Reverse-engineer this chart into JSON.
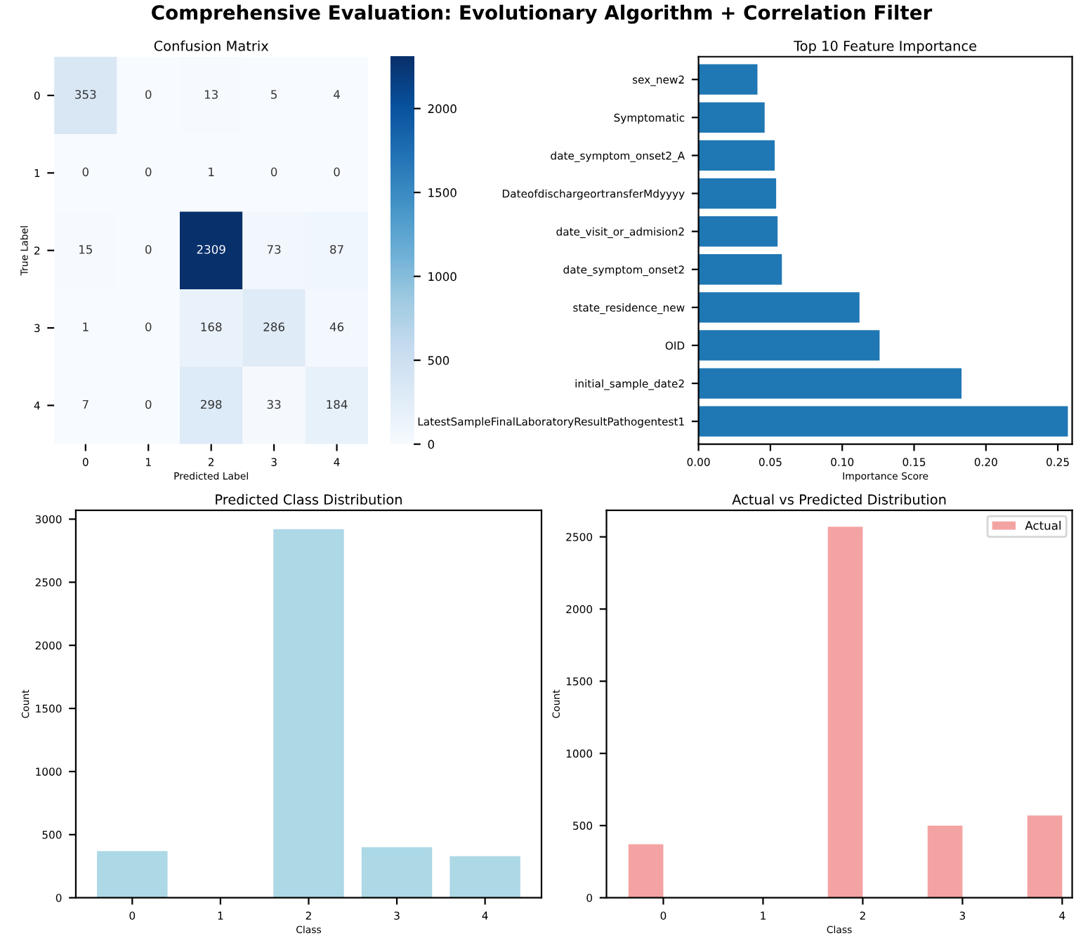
{
  "chart_data": [
    {
      "type": "heatmap",
      "title": "Confusion Matrix",
      "xlabel": "Predicted Label",
      "ylabel": "True Label",
      "categories": [
        "0",
        "1",
        "2",
        "3",
        "4"
      ],
      "y_categories": [
        "0",
        "1",
        "2",
        "3",
        "4"
      ],
      "cells": [
        [
          353,
          0,
          13,
          5,
          4
        ],
        [
          0,
          0,
          1,
          0,
          0
        ],
        [
          15,
          0,
          2309,
          73,
          87
        ],
        [
          1,
          0,
          168,
          286,
          46
        ],
        [
          7,
          0,
          298,
          33,
          184
        ]
      ],
      "annotations": [
        "Comprehensive Evaluation: Evolutionary Algorithm + Correlation Filter"
      ],
      "data_labels": true,
      "clim": [
        0,
        2309
      ],
      "cticks": [
        0,
        500,
        1000,
        1500,
        2000
      ]
    },
    {
      "type": "bar",
      "orientation": "horizontal",
      "title": "Top 10 Feature Importance",
      "xlabel": "Importance Score",
      "categories": [
        "sex_new2",
        "Symptomatic",
        "date_symptom_onset2_A",
        "DateofdischargeortransferMdyyyy",
        "date_visit_or_admision2",
        "date_symptom_onset2",
        "state_residence_new",
        "OID",
        "initial_sample_date2",
        "LatestSampleFinalLaboratoryResultPathogentest1"
      ],
      "values": [
        0.041,
        0.046,
        0.053,
        0.054,
        0.055,
        0.058,
        0.112,
        0.126,
        0.183,
        0.257
      ],
      "color": "#1f77b4",
      "xlim": [
        0,
        0.26
      ],
      "xticks": [
        {
          "value": 0,
          "label": "0.00"
        },
        {
          "value": 0.05,
          "label": "0.05"
        },
        {
          "value": 0.1,
          "label": "0.10"
        },
        {
          "value": 0.15,
          "label": "0.15"
        },
        {
          "value": 0.2,
          "label": "0.20"
        },
        {
          "value": 0.25,
          "label": "0.25"
        }
      ],
      "grid": false
    },
    {
      "type": "bar",
      "title": "Predicted Class Distribution",
      "xlabel": "Class",
      "ylabel": "Count",
      "categories": [
        "0",
        "1",
        "2",
        "3",
        "4"
      ],
      "values": [
        370,
        0,
        2920,
        400,
        330
      ],
      "color": "#add8e6",
      "ylim": [
        0,
        3070
      ],
      "yticks": [
        0,
        500,
        1000,
        1500,
        2000,
        2500,
        3000
      ],
      "grid": false
    },
    {
      "type": "bar",
      "title": "Actual vs Predicted Distribution",
      "xlabel": "Class",
      "ylabel": "Count",
      "categories": [
        "0",
        "1",
        "2",
        "3",
        "4"
      ],
      "series": [
        {
          "name": "Actual",
          "color": "#f4a3a3",
          "values": [
            370,
            0,
            2570,
            500,
            570
          ]
        }
      ],
      "ylim": [
        0,
        2684
      ],
      "yticks": [
        0,
        500,
        1000,
        1500,
        2000,
        2500
      ],
      "legend": "top right",
      "grid": false
    }
  ]
}
